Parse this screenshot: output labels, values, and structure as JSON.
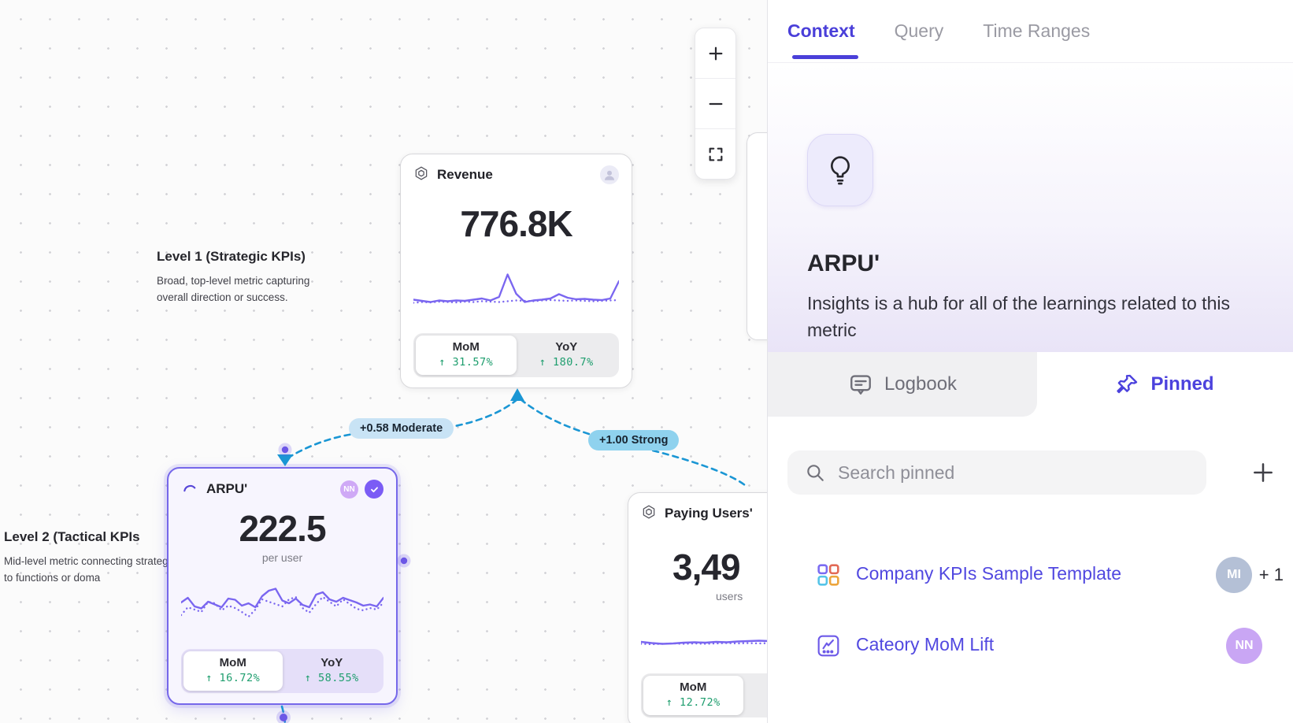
{
  "canvas": {
    "levels": [
      {
        "title": "Level 1 (Strategic KPIs)",
        "description": "Broad, top-level metric capturing overall direction or success."
      },
      {
        "title": "Level 2 (Tactical KPIs",
        "description": "Mid-level metric connecting strategy to functions or doma"
      }
    ],
    "edges": [
      {
        "label": "+0.58 Moderate"
      },
      {
        "label": "+1.00 Strong"
      }
    ],
    "cards": [
      {
        "title": "Revenue",
        "value": "776.8K",
        "subtitle": "",
        "tabs": [
          {
            "label": "MoM",
            "delta": "↑ 31.57%"
          },
          {
            "label": "YoY",
            "delta": "↑ 180.7%"
          }
        ],
        "spark_solid": [
          33,
          30,
          27,
          31,
          29,
          31,
          30,
          33,
          36,
          31,
          40,
          97,
          48,
          27,
          31,
          33,
          36,
          47,
          38,
          34,
          35,
          33,
          32,
          36,
          80
        ],
        "spark_dotted": [
          25,
          27,
          26,
          28,
          27,
          26,
          28,
          27,
          29,
          28,
          27,
          29,
          31,
          30,
          29,
          31,
          32,
          31,
          30,
          31,
          30,
          29,
          30,
          31,
          32
        ]
      },
      {
        "title": "ARPU'",
        "value": "222.5",
        "subtitle": "per user",
        "badge": "NN",
        "tabs": [
          {
            "label": "MoM",
            "delta": "↑ 16.72%"
          },
          {
            "label": "YoY",
            "delta": "↑ 58.55%"
          }
        ],
        "spark_solid": [
          50,
          62,
          40,
          35,
          52,
          45,
          38,
          60,
          57,
          42,
          48,
          38,
          66,
          80,
          85,
          55,
          48,
          60,
          44,
          38,
          70,
          76,
          58,
          52,
          62,
          56,
          50,
          42,
          45,
          40,
          62
        ],
        "spark_dotted": [
          18,
          38,
          32,
          26,
          52,
          48,
          30,
          42,
          36,
          26,
          14,
          32,
          58,
          52,
          46,
          40,
          58,
          64,
          36,
          24,
          46,
          64,
          52,
          40,
          58,
          46,
          34,
          30,
          36,
          32,
          50
        ]
      },
      {
        "title": "Paying Users'",
        "value": "3,49",
        "subtitle": "users",
        "tabs": [
          {
            "label": "MoM",
            "delta": "↑ 12.72%"
          }
        ],
        "spark_solid": [
          32,
          29,
          27,
          28,
          30,
          31,
          30,
          32,
          31,
          33,
          34,
          35,
          34,
          36,
          40,
          38,
          97,
          52,
          31,
          36
        ],
        "spark_dotted": [
          27,
          26,
          27,
          28,
          27,
          28,
          27,
          28,
          29,
          28,
          29,
          28,
          29,
          30,
          29,
          30,
          31,
          30,
          29,
          30
        ]
      }
    ]
  },
  "sidebar": {
    "tabs": [
      {
        "label": "Context",
        "active": true
      },
      {
        "label": "Query",
        "active": false
      },
      {
        "label": "Time Ranges",
        "active": false
      }
    ],
    "hero": {
      "title": "ARPU'",
      "description": "Insights is a hub for all of the learnings related to this metric"
    },
    "subtabs": [
      {
        "label": "Logbook",
        "active": false
      },
      {
        "label": "Pinned",
        "active": true
      }
    ],
    "search": {
      "placeholder": "Search pinned"
    },
    "pinned_items": [
      {
        "label": "Company KPIs Sample Template",
        "avatar": "MI",
        "extra": "+ 1"
      },
      {
        "label": "Cateory MoM Lift",
        "avatar": "NN",
        "extra": ""
      }
    ]
  },
  "colors": {
    "accent_purple": "#4a3fd9",
    "sparkline_purple": "#7a66f0",
    "delta_green": "#1e9e6e",
    "connector_blue": "#1a96d4",
    "edge_moderate_bg": "#c8e3f5",
    "edge_strong_bg": "#8fd2ee",
    "selected_card_border": "#7668ea"
  }
}
